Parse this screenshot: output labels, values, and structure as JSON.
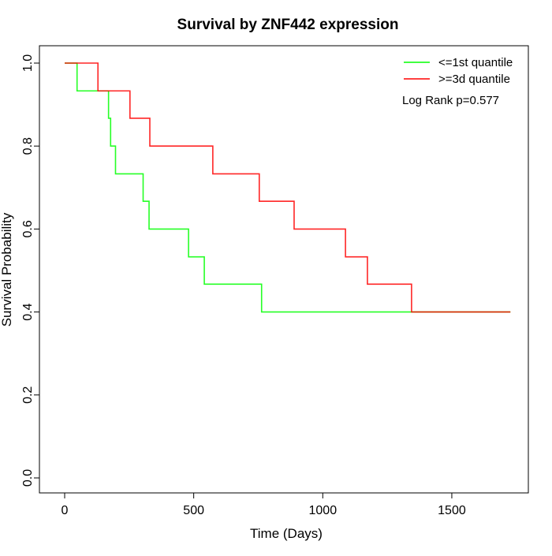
{
  "chart_data": {
    "type": "line",
    "step": true,
    "title": "Survival by ZNF442 expression",
    "xlabel": "Time (Days)",
    "ylabel": "Survival Probability",
    "xlim": [
      0,
      1800
    ],
    "ylim": [
      0,
      1
    ],
    "xticks": [
      0,
      500,
      1000,
      1500
    ],
    "yticks": [
      0.0,
      0.2,
      0.4,
      0.6,
      0.8,
      1.0
    ],
    "ytick_labels": [
      "0.0",
      "0.2",
      "0.4",
      "0.6",
      "0.8",
      "1.0"
    ],
    "grid": false,
    "legend_position": "top-right",
    "annotation": "Log Rank p=0.577",
    "series": [
      {
        "name": "<=1st quantile",
        "color": "#00ff00",
        "x": [
          0,
          48,
          170,
          178,
          197,
          304,
          327,
          480,
          541,
          763,
          1727
        ],
        "y": [
          1.0,
          0.933,
          0.867,
          0.8,
          0.733,
          0.667,
          0.6,
          0.533,
          0.467,
          0.4,
          0.4
        ]
      },
      {
        "name": ">=3d quantile",
        "color": "#ff0000",
        "x": [
          0,
          129,
          253,
          330,
          574,
          754,
          889,
          1088,
          1173,
          1344,
          1727
        ],
        "y": [
          1.0,
          0.933,
          0.867,
          0.8,
          0.733,
          0.667,
          0.6,
          0.533,
          0.467,
          0.4,
          0.4
        ]
      }
    ]
  }
}
